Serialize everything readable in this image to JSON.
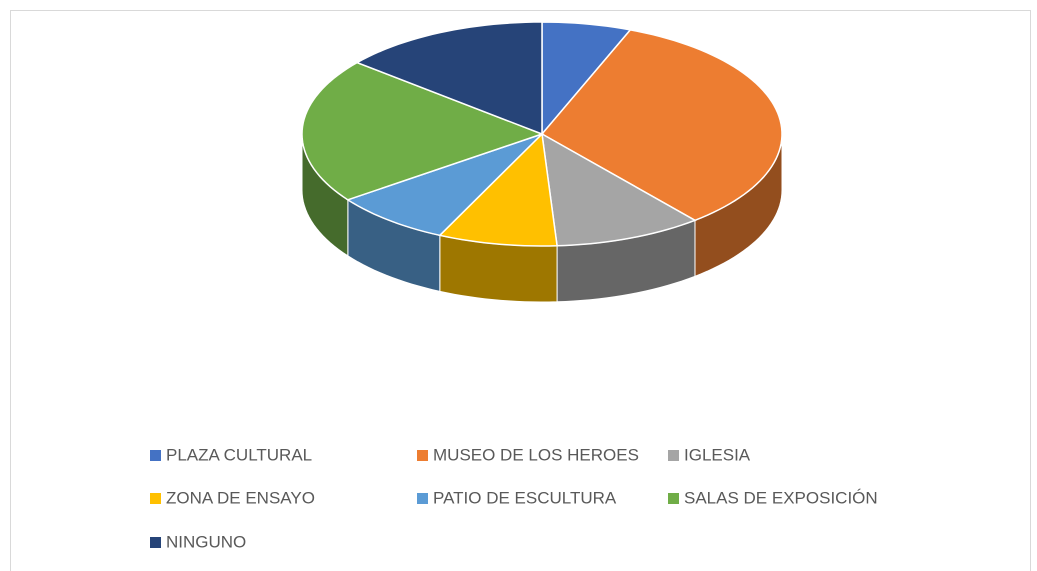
{
  "chart_data": {
    "type": "pie",
    "categories": [
      "PLAZA CULTURAL",
      "MUSEO DE LOS HEROES",
      "IGLESIA",
      "ZONA DE ENSAYO",
      "PATIO DE ESCULTURA",
      "SALAS DE EXPOSICIÓN",
      "NINGUNO"
    ],
    "values": [
      6,
      33,
      10,
      8,
      8,
      21,
      14
    ],
    "colors": [
      "#4472c4",
      "#ed7d31",
      "#a5a5a5",
      "#ffc000",
      "#5b9bd5",
      "#70ad47",
      "#264478"
    ],
    "legend": "bottom"
  }
}
